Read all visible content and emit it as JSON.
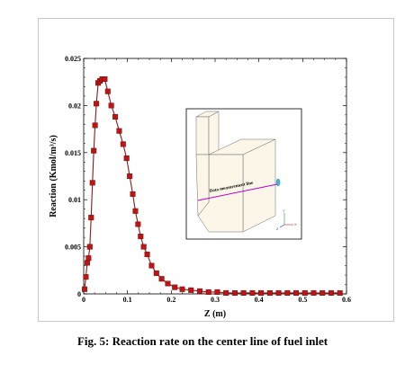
{
  "chart_data": {
    "type": "line",
    "title": "",
    "xlabel": "Z (m)",
    "ylabel": "Reaction (Kmol/m³/s)",
    "xlim": [
      0,
      0.6
    ],
    "ylim": [
      0,
      0.025
    ],
    "xticks": [
      "0",
      "0.1",
      "0.2",
      "0.3",
      "0.4",
      "0.5",
      "0.6"
    ],
    "yticks": [
      "0",
      "0.005",
      "0.01",
      "0.015",
      "0.02",
      "0.025"
    ],
    "grid": false,
    "marker": "square",
    "line_color": "#8b1a1a",
    "marker_color": "#c01414",
    "series": [
      {
        "name": "",
        "x": [
          0.002,
          0.005,
          0.008,
          0.011,
          0.014,
          0.017,
          0.02,
          0.023,
          0.026,
          0.029,
          0.033,
          0.037,
          0.042,
          0.048,
          0.055,
          0.063,
          0.072,
          0.081,
          0.09,
          0.098,
          0.105,
          0.112,
          0.118,
          0.124,
          0.13,
          0.137,
          0.145,
          0.155,
          0.166,
          0.178,
          0.192,
          0.208,
          0.225,
          0.245,
          0.265,
          0.285,
          0.305,
          0.325,
          0.345,
          0.365,
          0.385,
          0.405,
          0.425,
          0.445,
          0.465,
          0.485,
          0.505,
          0.525,
          0.545,
          0.565,
          0.585
        ],
        "y": [
          0.0005,
          0.0018,
          0.0033,
          0.0038,
          0.005,
          0.0081,
          0.0118,
          0.0152,
          0.0179,
          0.0202,
          0.0224,
          0.0226,
          0.0228,
          0.0228,
          0.0215,
          0.02,
          0.0188,
          0.0173,
          0.0159,
          0.0144,
          0.0125,
          0.0106,
          0.0088,
          0.0074,
          0.0061,
          0.005,
          0.0042,
          0.003,
          0.0022,
          0.0016,
          0.0011,
          0.0007,
          0.0005,
          0.0004,
          0.0003,
          0.0002,
          0.0002,
          0.0001,
          0.0001,
          0.0001,
          0.0001,
          0.0001,
          0.0001,
          0.0001,
          0.0001,
          0.0001,
          0.0001,
          0.0001,
          0.0001,
          0.0001,
          0.0001
        ]
      }
    ],
    "inset": {
      "label": "Data measurement line",
      "axis_labels": [
        "Y",
        "Z",
        "X"
      ]
    }
  },
  "caption": "Fig. 5: Reaction rate on the center line of fuel inlet"
}
